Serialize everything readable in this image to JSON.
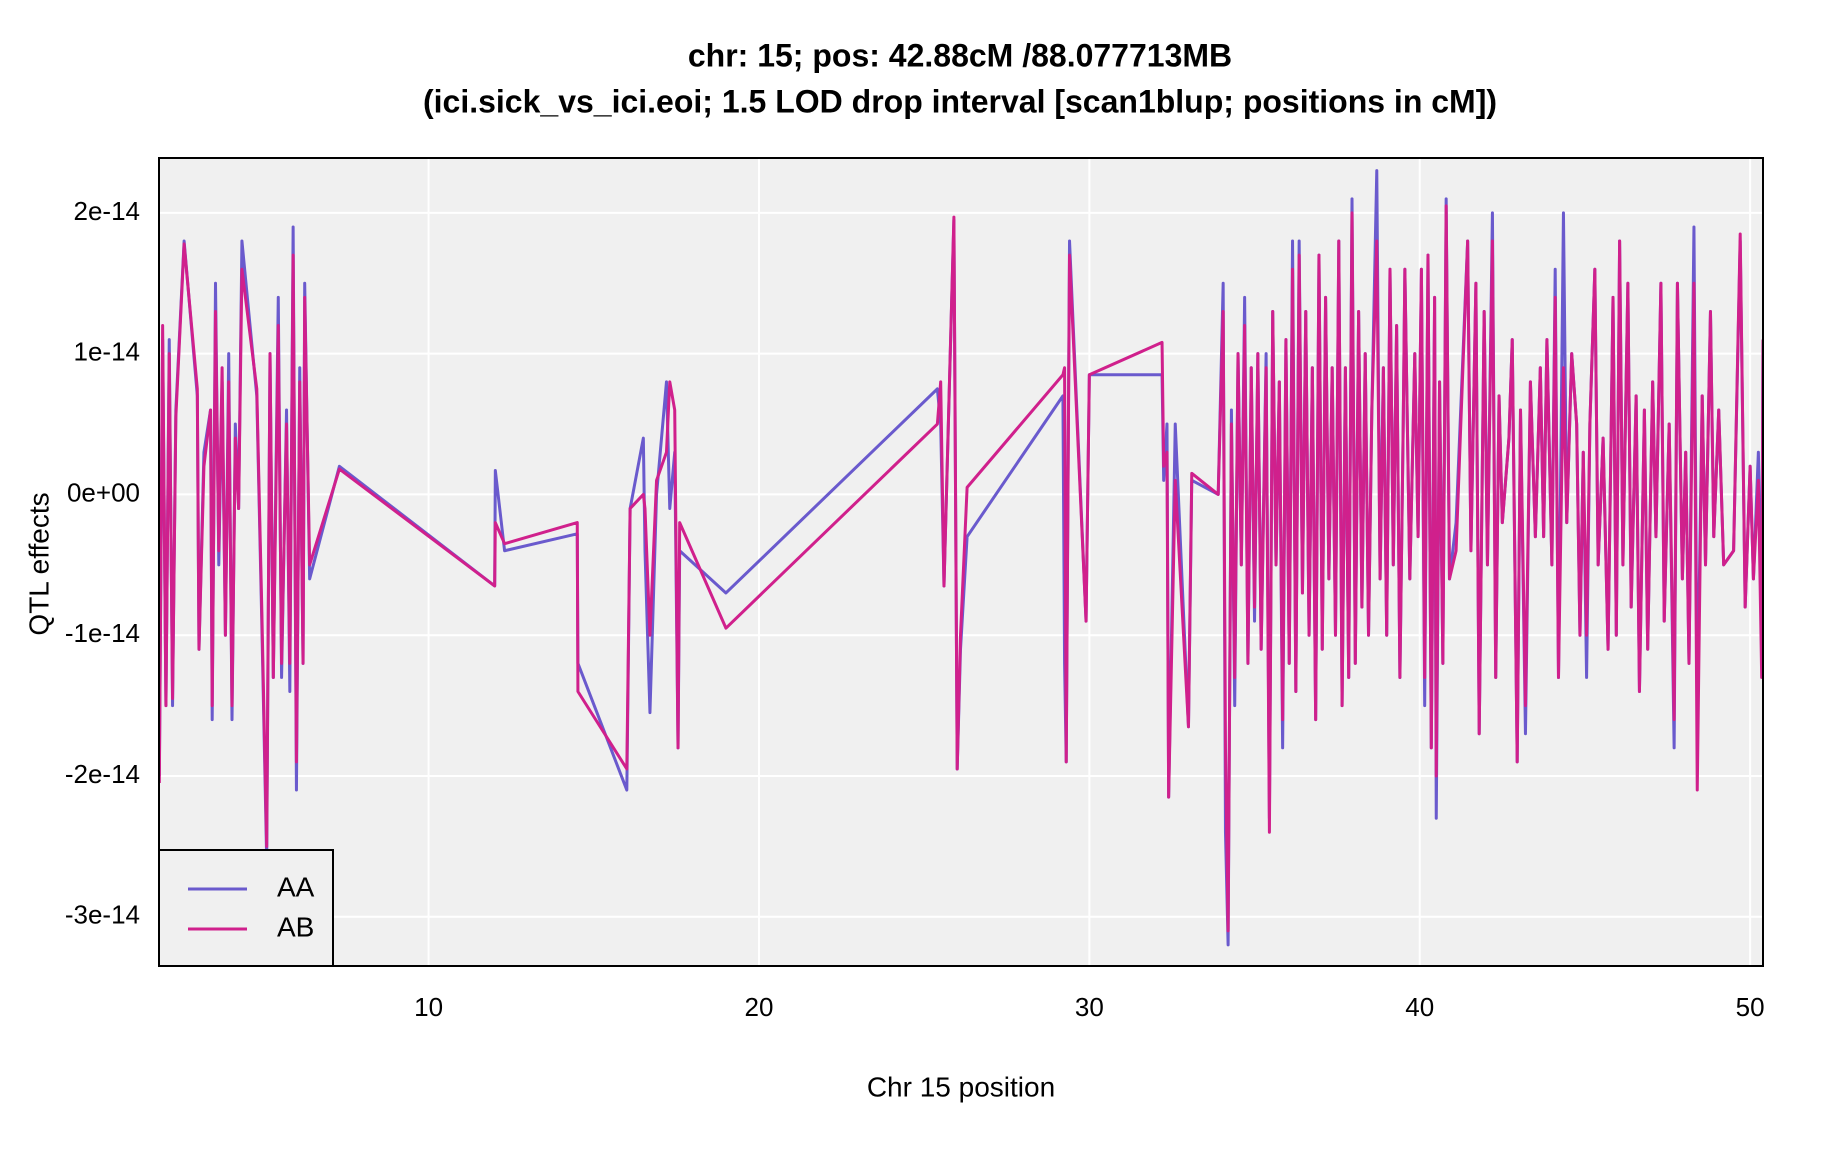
{
  "chart_data": {
    "type": "line",
    "title": "chr: 15; pos: 42.88cM /88.077713MB",
    "subtitle": "(ici.sick_vs_ici.eoi; 1.5 LOD drop interval [scan1blup; positions in cM])",
    "x_label": "Chr 15 position",
    "y_label": "QTL effects",
    "xlim": [
      1.84,
      50.39
    ],
    "ylim": [
      -3.35e-14,
      2.39e-14
    ],
    "xticks": [
      10,
      20,
      30,
      40,
      50
    ],
    "yticks": [
      {
        "value": -3e-14,
        "label": "-3e-14"
      },
      {
        "value": -2e-14,
        "label": "-2e-14"
      },
      {
        "value": -1e-14,
        "label": "-1e-14"
      },
      {
        "value": 0,
        "label": "0e+00"
      },
      {
        "value": 1e-14,
        "label": "1e-14"
      },
      {
        "value": 2e-14,
        "label": "2e-14"
      }
    ],
    "grid": true,
    "legend": "bottom-left",
    "x": [
      1.85,
      1.95,
      2.05,
      2.15,
      2.25,
      2.35,
      2.6,
      3.0,
      3.05,
      3.2,
      3.4,
      3.45,
      3.55,
      3.65,
      3.75,
      3.85,
      3.95,
      4.05,
      4.15,
      4.25,
      4.35,
      4.8,
      4.95,
      5.1,
      5.2,
      5.3,
      5.45,
      5.55,
      5.7,
      5.8,
      5.9,
      6.0,
      6.1,
      6.2,
      6.25,
      6.4,
      7.3,
      12.0,
      12.02,
      12.3,
      14.5,
      14.52,
      16.0,
      16.1,
      16.5,
      16.55,
      16.7,
      16.9,
      17.2,
      17.3,
      17.45,
      17.55,
      17.6,
      19.0,
      25.4,
      25.5,
      25.6,
      25.9,
      26.0,
      26.1,
      26.3,
      29.2,
      29.25,
      29.3,
      29.4,
      29.9,
      30.0,
      32.2,
      32.25,
      32.35,
      32.4,
      32.6,
      33.0,
      33.1,
      33.9,
      34.05,
      34.12,
      34.2,
      34.3,
      34.4,
      34.5,
      34.6,
      34.7,
      34.8,
      34.9,
      35.0,
      35.1,
      35.2,
      35.35,
      35.45,
      35.55,
      35.65,
      35.75,
      35.85,
      35.95,
      36.05,
      36.15,
      36.25,
      36.35,
      36.45,
      36.55,
      36.65,
      36.75,
      36.85,
      36.95,
      37.05,
      37.15,
      37.25,
      37.35,
      37.45,
      37.55,
      37.65,
      37.75,
      37.85,
      37.95,
      38.05,
      38.15,
      38.25,
      38.35,
      38.45,
      38.55,
      38.7,
      38.8,
      38.9,
      39.0,
      39.1,
      39.2,
      39.3,
      39.4,
      39.5,
      39.55,
      39.7,
      39.85,
      39.95,
      40.05,
      40.15,
      40.25,
      40.35,
      40.45,
      40.5,
      40.6,
      40.7,
      40.8,
      40.9,
      41.1,
      41.45,
      41.55,
      41.7,
      41.8,
      41.95,
      42.05,
      42.2,
      42.3,
      42.4,
      42.5,
      42.7,
      42.8,
      42.95,
      43.05,
      43.2,
      43.35,
      43.5,
      43.65,
      43.75,
      43.85,
      44.0,
      44.1,
      44.2,
      44.35,
      44.45,
      44.6,
      44.75,
      44.85,
      44.95,
      45.05,
      45.15,
      45.3,
      45.4,
      45.55,
      45.7,
      45.85,
      45.95,
      46.05,
      46.15,
      46.3,
      46.4,
      46.55,
      46.65,
      46.8,
      46.9,
      47.05,
      47.15,
      47.3,
      47.4,
      47.55,
      47.7,
      47.8,
      47.95,
      48.05,
      48.15,
      48.3,
      48.4,
      48.55,
      48.65,
      48.8,
      48.9,
      49.05,
      49.2,
      49.5,
      49.7,
      49.85,
      50.0,
      50.1,
      50.25,
      50.35,
      50.39
    ],
    "series": [
      {
        "name": "AA",
        "color": "#6a5acd",
        "values": [
          -2e-14,
          1.1e-14,
          -1.5e-14,
          1.1e-14,
          -1.5e-14,
          6e-15,
          1.8e-14,
          7e-15,
          -1.1e-14,
          3e-15,
          6e-15,
          -1.6e-14,
          1.5e-14,
          -5e-15,
          8e-15,
          -1e-14,
          1e-14,
          -1.6e-14,
          5e-15,
          -1e-15,
          1.8e-14,
          7e-15,
          -9e-15,
          -2.6e-14,
          1e-14,
          -1.3e-14,
          1.4e-14,
          -1.3e-14,
          6e-15,
          -1.4e-14,
          1.9e-14,
          -2.1e-14,
          9e-15,
          -1.2e-14,
          1.5e-14,
          -6e-15,
          2e-15,
          -6.5e-15,
          1.7e-15,
          -4e-15,
          -2.8e-15,
          -1.2e-14,
          -2.1e-14,
          -1e-15,
          4e-15,
          -4e-15,
          -1.55e-14,
          0.0,
          8e-15,
          -1e-15,
          3e-15,
          -1.8e-14,
          -4e-15,
          -7e-15,
          7.5e-15,
          5e-15,
          -6.5e-15,
          1.95e-14,
          -1.95e-14,
          -1.1e-14,
          -3e-15,
          7e-15,
          -1.2e-14,
          -1.9e-14,
          1.8e-14,
          -9e-15,
          8.5e-15,
          8.5e-15,
          1e-15,
          5e-15,
          -2.15e-14,
          5e-15,
          -1.65e-14,
          1e-15,
          0.0,
          1.5e-14,
          -2.4e-14,
          -3.2e-14,
          6e-15,
          -1.5e-14,
          1e-14,
          -5e-15,
          1.4e-14,
          -1.2e-14,
          9e-15,
          -9e-15,
          1e-14,
          -1.1e-14,
          1e-14,
          -2.3e-14,
          1.3e-14,
          -5e-15,
          8e-15,
          -1.8e-14,
          1.1e-14,
          -1.2e-14,
          1.8e-14,
          -1.4e-14,
          1.8e-14,
          -7e-15,
          1.3e-14,
          -1e-14,
          9e-15,
          -1.6e-14,
          1.7e-14,
          -1.1e-14,
          1.4e-14,
          -6e-15,
          9e-15,
          -1e-14,
          1.8e-14,
          -1.5e-14,
          9e-15,
          -1.3e-14,
          2.1e-14,
          -1.2e-14,
          1.3e-14,
          -8e-15,
          1e-14,
          -1e-14,
          6e-15,
          2.3e-14,
          -6e-15,
          9e-15,
          -1e-14,
          1.6e-14,
          -5e-15,
          1.2e-14,
          -1.3e-14,
          5e-15,
          1.6e-14,
          -6e-15,
          1e-14,
          -3e-15,
          1.6e-14,
          -1.5e-14,
          1.7e-14,
          -1.8e-14,
          1.4e-14,
          -2.3e-14,
          8e-15,
          -1.2e-14,
          2.1e-14,
          -6e-15,
          -2e-15,
          1.8e-14,
          -4e-15,
          1.5e-14,
          -1.7e-14,
          1.3e-14,
          -5e-15,
          2e-14,
          -1.3e-14,
          7e-15,
          -2e-15,
          4e-15,
          1.1e-14,
          -1.9e-14,
          6e-15,
          -1.7e-14,
          8e-15,
          -3e-15,
          9e-15,
          -3e-15,
          1.1e-14,
          -5e-15,
          1.6e-14,
          -1.3e-14,
          2e-14,
          -2e-15,
          1e-14,
          5e-15,
          -1e-14,
          3e-15,
          -1.3e-14,
          5e-15,
          1.6e-14,
          -5e-15,
          4e-15,
          -1.1e-14,
          1.4e-14,
          -1e-14,
          1.8e-14,
          -5e-15,
          1.5e-14,
          -8e-15,
          7e-15,
          -1.4e-14,
          6e-15,
          -1.1e-14,
          8e-15,
          -3e-15,
          1.5e-14,
          -9e-15,
          5e-15,
          -1.8e-14,
          1.5e-14,
          -6e-15,
          3e-15,
          -1.2e-14,
          1.9e-14,
          -1.6e-14,
          7e-15,
          -5e-15,
          1.3e-14,
          -3e-15,
          6e-15,
          -5e-15,
          -4e-15,
          1.8e-14,
          -8e-15,
          2e-15,
          -6e-15,
          3e-15,
          -9e-15,
          1.1e-14
        ]
      },
      {
        "name": "AB",
        "color": "#d0208c",
        "values": [
          -2.05e-14,
          1.2e-14,
          -1.5e-14,
          1e-14,
          -1.45e-14,
          5.5e-15,
          1.78e-14,
          7.5e-15,
          -1.1e-14,
          2e-15,
          6e-15,
          -1.5e-14,
          1.3e-14,
          -4e-15,
          9e-15,
          -1e-14,
          8e-15,
          -1.5e-14,
          4e-15,
          -1e-15,
          1.6e-14,
          7.5e-15,
          -8e-15,
          -2.5e-14,
          1e-14,
          -1.3e-14,
          1.2e-14,
          -1.2e-14,
          5e-15,
          -1.2e-14,
          1.7e-14,
          -1.9e-14,
          8e-15,
          -1.2e-14,
          1.4e-14,
          -5e-15,
          1.8e-15,
          -6.5e-15,
          -2e-15,
          -3.5e-15,
          -2e-15,
          -1.4e-14,
          -1.95e-14,
          -1e-15,
          0.0,
          -1e-15,
          -1e-14,
          1e-15,
          3e-15,
          8e-15,
          6e-15,
          -1.8e-14,
          -2e-15,
          -9.5e-15,
          5e-15,
          8e-15,
          -6.5e-15,
          1.97e-14,
          -1.95e-14,
          -1e-14,
          5e-16,
          8.5e-15,
          9e-15,
          -1.9e-14,
          1.7e-14,
          -9e-15,
          8.5e-15,
          1.08e-14,
          2e-15,
          3e-15,
          -2.15e-14,
          1e-15,
          -1.65e-14,
          1.5e-15,
          0.0,
          1.3e-14,
          -1.8e-14,
          -3.1e-14,
          5e-15,
          -1.3e-14,
          1e-14,
          -5e-15,
          1.2e-14,
          -1.2e-14,
          9e-15,
          -8e-15,
          1e-14,
          -1.1e-14,
          9e-15,
          -2.4e-14,
          1.3e-14,
          -5e-15,
          8e-15,
          -1.6e-14,
          1.1e-14,
          -1.2e-14,
          1.6e-14,
          -1.4e-14,
          1.7e-14,
          -7e-15,
          1.3e-14,
          -1e-14,
          9e-15,
          -1.6e-14,
          1.7e-14,
          -1.1e-14,
          1.4e-14,
          -6e-15,
          9e-15,
          -1e-14,
          1.8e-14,
          -1.5e-14,
          9e-15,
          -1.3e-14,
          2e-14,
          -1.2e-14,
          1.3e-14,
          -8e-15,
          1e-14,
          -1e-14,
          6e-15,
          1.8e-14,
          -6e-15,
          9e-15,
          -1e-14,
          1.6e-14,
          -5e-15,
          1.2e-14,
          -1.3e-14,
          5e-15,
          1.6e-14,
          -6e-15,
          1e-14,
          -3e-15,
          1.6e-14,
          -1.3e-14,
          1.7e-14,
          -1.8e-14,
          1.4e-14,
          -2e-14,
          8e-15,
          -1.2e-14,
          2.05e-14,
          -6e-15,
          -4e-15,
          1.8e-14,
          -4e-15,
          1.5e-14,
          -1.7e-14,
          1.3e-14,
          -5e-15,
          1.8e-14,
          -1.3e-14,
          7e-15,
          -2e-15,
          4e-15,
          1.1e-14,
          -1.9e-14,
          6e-15,
          -1.5e-14,
          8e-15,
          -3e-15,
          9e-15,
          -3e-15,
          1.1e-14,
          -5e-15,
          1.4e-14,
          -1.3e-14,
          9e-15,
          -2e-15,
          1e-14,
          5e-15,
          -1e-14,
          3e-15,
          -1e-14,
          5e-15,
          1.6e-14,
          -5e-15,
          4e-15,
          -1.1e-14,
          1.4e-14,
          -1e-14,
          1.8e-14,
          -5e-15,
          1.5e-14,
          -8e-15,
          7e-15,
          -1.4e-14,
          6e-15,
          -1.1e-14,
          8e-15,
          -3e-15,
          1.5e-14,
          -9e-15,
          5e-15,
          -1.6e-14,
          1.5e-14,
          -6e-15,
          3e-15,
          -1.2e-14,
          1.5e-14,
          -2.1e-14,
          7e-15,
          -5e-15,
          1.3e-14,
          -3e-15,
          6e-15,
          -5e-15,
          -4e-15,
          1.85e-14,
          -8e-15,
          2e-15,
          -6e-15,
          1e-15,
          -1.3e-14,
          1.1e-14
        ]
      }
    ]
  }
}
